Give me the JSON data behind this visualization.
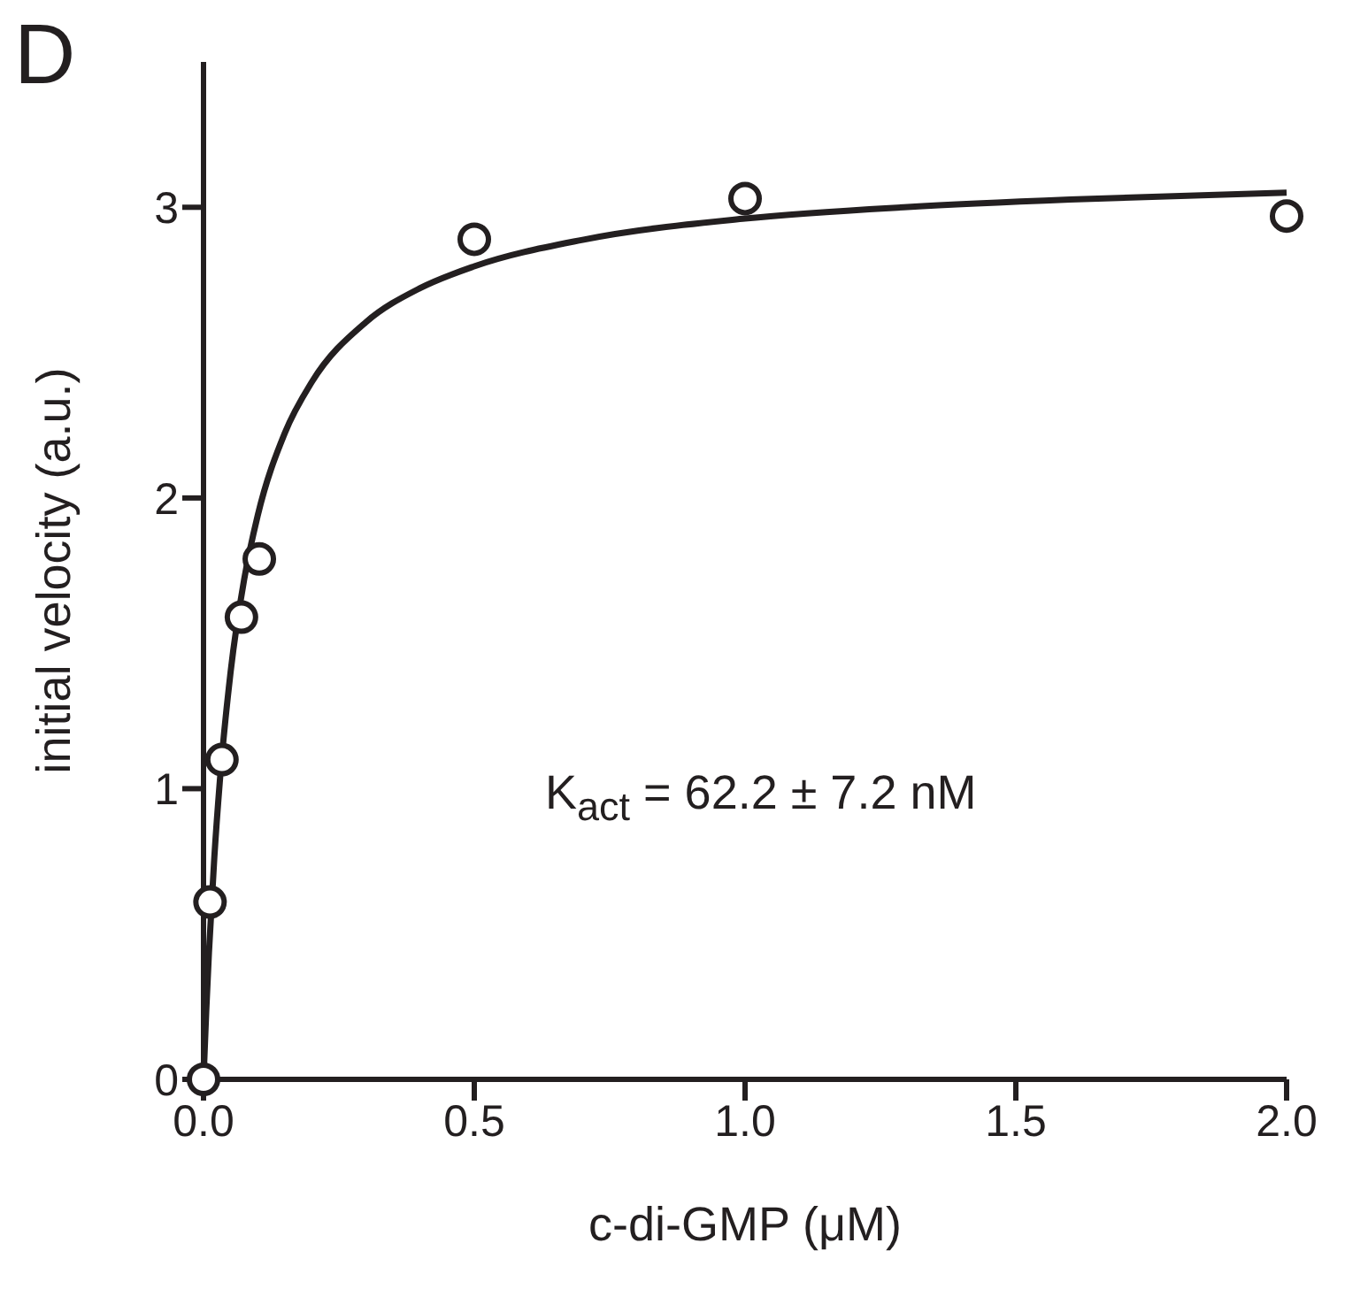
{
  "chart_data": {
    "type": "scatter",
    "title": "D",
    "xlabel": "c-di-GMP (μM)",
    "ylabel": "initial velocity (a.u.)",
    "annotations": [
      "K$_{act}$ = 62.2 ± 7.2 nM"
    ],
    "series": [
      {
        "color": "#231f20",
        "marker": "circle",
        "x": [
          0,
          0.012,
          0.034,
          0.07,
          0.103,
          0.5,
          1.0,
          2.0
        ],
        "values": [
          0,
          0.61,
          1.1,
          1.59,
          1.79,
          2.89,
          3.03,
          2.97
        ]
      },
      {
        "type": "line",
        "color": "#231f20",
        "marker": "none",
        "line_style": "solid",
        "x": [
          0,
          0.005,
          0.01,
          0.02,
          0.03,
          0.05,
          0.075,
          0.1,
          0.15,
          0.2,
          0.3,
          0.4,
          0.5,
          0.7,
          1.0,
          1.3,
          1.6,
          2.0
        ],
        "values": [
          0,
          0.234,
          0.436,
          0.765,
          1.023,
          1.401,
          1.719,
          1.939,
          2.223,
          2.399,
          2.605,
          2.722,
          2.797,
          2.888,
          2.961,
          3.001,
          3.027,
          3.05
        ]
      }
    ],
    "xlim": [
      0,
      2
    ],
    "ylim": [
      0,
      3.5
    ],
    "xticks": [
      {
        "value": 0,
        "label": "0.0"
      },
      {
        "value": 0.5,
        "label": "0.5"
      },
      {
        "value": 1,
        "label": "1.0"
      },
      {
        "value": 1.5,
        "label": "1.5"
      },
      {
        "value": 2,
        "label": "2.0"
      }
    ],
    "yticks": [
      0,
      1,
      2,
      3
    ],
    "grid": false,
    "legend": false
  }
}
